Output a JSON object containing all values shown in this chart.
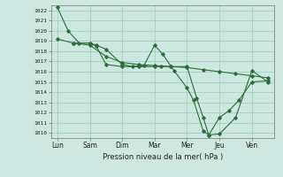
{
  "title": "",
  "xlabel": "Pression niveau de la mer( hPa )",
  "ylabel": "",
  "bg_color": "#cce8e0",
  "grid_color": "#99ccbb",
  "line_color": "#2d6b3c",
  "x_labels": [
    "Lun",
    "Sam",
    "Dim",
    "Mar",
    "Mer",
    "Jeu",
    "Ven"
  ],
  "x_positions": [
    0,
    1,
    2,
    3,
    4,
    5,
    6
  ],
  "ylim": [
    1009.5,
    1022.5
  ],
  "yticks": [
    1010,
    1011,
    1012,
    1013,
    1014,
    1015,
    1016,
    1017,
    1018,
    1019,
    1020,
    1021,
    1022
  ],
  "series1": {
    "x": [
      0.0,
      0.33,
      0.67,
      1.0,
      1.2,
      1.5,
      2.0,
      2.33,
      2.67,
      3.0,
      3.25,
      3.6,
      4.0,
      4.2,
      4.5,
      4.67,
      5.0,
      5.5,
      6.0,
      6.5
    ],
    "y": [
      1022.3,
      1020.0,
      1018.8,
      1018.8,
      1018.6,
      1018.2,
      1016.7,
      1016.5,
      1016.6,
      1018.6,
      1017.7,
      1016.1,
      1014.4,
      1013.2,
      1010.2,
      1009.8,
      1009.9,
      1011.5,
      1016.1,
      1015.0
    ]
  },
  "series2": {
    "x": [
      0.0,
      0.5,
      1.0,
      1.5,
      2.0,
      2.5,
      3.0,
      3.5,
      4.0,
      4.5,
      5.0,
      5.5,
      6.0,
      6.5
    ],
    "y": [
      1019.2,
      1018.8,
      1018.6,
      1017.5,
      1016.9,
      1016.7,
      1016.6,
      1016.5,
      1016.4,
      1016.2,
      1016.0,
      1015.8,
      1015.6,
      1015.4
    ]
  },
  "series3": {
    "x": [
      0.5,
      1.0,
      1.2,
      1.5,
      2.0,
      2.5,
      3.0,
      3.2,
      3.5,
      4.0,
      4.3,
      4.5,
      4.67,
      5.0,
      5.3,
      5.6,
      6.0,
      6.5
    ],
    "y": [
      1018.8,
      1018.8,
      1018.5,
      1016.7,
      1016.5,
      1016.5,
      1016.5,
      1016.5,
      1016.5,
      1016.5,
      1013.4,
      1011.5,
      1009.8,
      1011.5,
      1012.2,
      1013.2,
      1015.0,
      1015.1
    ]
  }
}
